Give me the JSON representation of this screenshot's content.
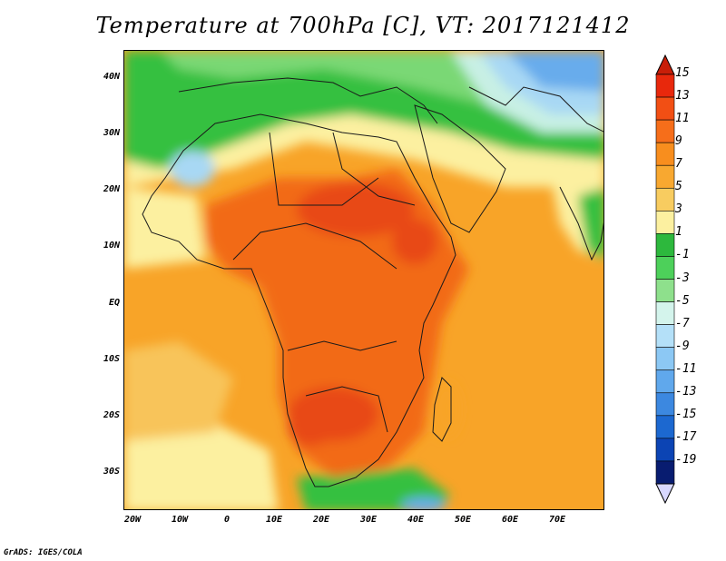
{
  "title": "Temperature at 700hPa [C], VT: 2017121412",
  "credit": "GrADS: IGES/COLA",
  "lat_ticks": [
    "40N",
    "30N",
    "20N",
    "10N",
    "EQ",
    "10S",
    "20S",
    "30S"
  ],
  "lon_ticks": [
    "20W",
    "10W",
    "0",
    "10E",
    "20E",
    "30E",
    "40E",
    "50E",
    "60E",
    "70E"
  ],
  "colorbar": {
    "labels": [
      "15",
      "13",
      "11",
      "9",
      "7",
      "5",
      "3",
      "1",
      "-1",
      "-3",
      "-5",
      "-7",
      "-9",
      "-11",
      "-13",
      "-15",
      "-17",
      "-19"
    ],
    "colors": [
      "#e8280c",
      "#f24f14",
      "#f66e1a",
      "#f88e1e",
      "#f8a830",
      "#f8cc60",
      "#fcf0a0",
      "#2db83d",
      "#4dd05a",
      "#8ee08c",
      "#d4f4ec",
      "#b4e0f8",
      "#8cc8f4",
      "#60a8ec",
      "#3c88e0",
      "#1c68d0",
      "#0c44b4",
      "#081c70"
    ],
    "top_arrow_color": "#c81e08",
    "bottom_arrow_color": "#d8d8ff"
  },
  "map_colors": {
    "ocean_warm": "#f8a428",
    "ocean_mid": "#f8c45a",
    "land_hot": "#f26a18",
    "land_hottest": "#e84a12",
    "pale": "#fcf0a0",
    "green": "#34c040",
    "green_light": "#7ad874",
    "cyan": "#c8f0e4",
    "blue_light": "#a8d8f4",
    "blue": "#68acec",
    "blue_deep": "#3c7ed8"
  }
}
